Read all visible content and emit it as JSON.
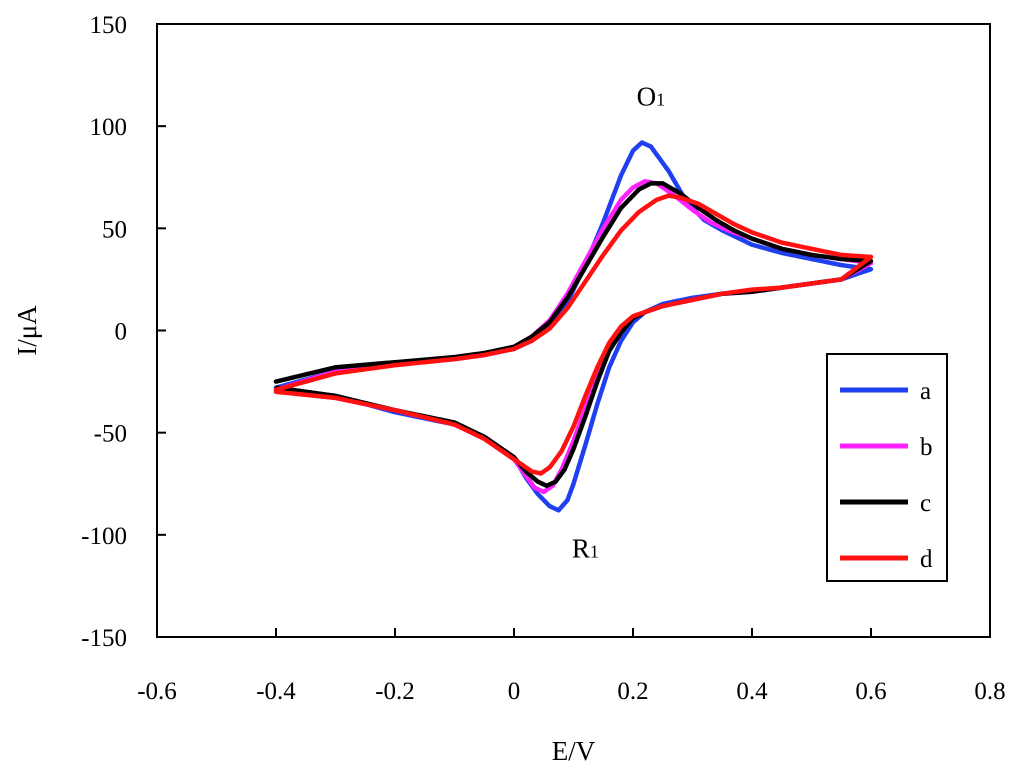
{
  "chart_data": {
    "type": "line",
    "xlabel": "E/V",
    "ylabel": "I/μA",
    "xlim": [
      -0.6,
      0.8
    ],
    "ylim": [
      -150,
      150
    ],
    "x_ticks": [
      -0.6,
      -0.4,
      -0.2,
      0,
      0.2,
      0.4,
      0.6,
      0.8
    ],
    "y_ticks": [
      -150,
      -100,
      -50,
      0,
      50,
      100,
      150
    ],
    "x_tick_labels": [
      "-0.6",
      "-0.4",
      "-0.2",
      "0",
      "0.2",
      "0.4",
      "0.6",
      "0.8"
    ],
    "y_tick_labels": [
      "-150",
      "-100",
      "-50",
      "0",
      "50",
      "100",
      "150"
    ],
    "grid": false,
    "legend_position": "right",
    "annotations": [
      {
        "main": "O",
        "sub": "1",
        "x": 0.23,
        "y": 110
      },
      {
        "main": "R",
        "sub": "1",
        "x": 0.12,
        "y": -111
      }
    ],
    "series": [
      {
        "name": "a",
        "color": "#1f3ff0",
        "points": [
          [
            -0.4,
            -28
          ],
          [
            -0.3,
            -20
          ],
          [
            -0.2,
            -16.5
          ],
          [
            -0.1,
            -14
          ],
          [
            -0.05,
            -12
          ],
          [
            0,
            -9
          ],
          [
            0.03,
            -5
          ],
          [
            0.06,
            2
          ],
          [
            0.09,
            14
          ],
          [
            0.12,
            32
          ],
          [
            0.15,
            53
          ],
          [
            0.18,
            76
          ],
          [
            0.2,
            88
          ],
          [
            0.215,
            92
          ],
          [
            0.23,
            90
          ],
          [
            0.26,
            78
          ],
          [
            0.29,
            63
          ],
          [
            0.32,
            54
          ],
          [
            0.35,
            49
          ],
          [
            0.4,
            42
          ],
          [
            0.45,
            38
          ],
          [
            0.5,
            35
          ],
          [
            0.55,
            32
          ],
          [
            0.6,
            30
          ],
          [
            0.6,
            30
          ],
          [
            0.55,
            25
          ],
          [
            0.5,
            23
          ],
          [
            0.45,
            21
          ],
          [
            0.4,
            19
          ],
          [
            0.35,
            18
          ],
          [
            0.3,
            16
          ],
          [
            0.25,
            13
          ],
          [
            0.22,
            9
          ],
          [
            0.2,
            4
          ],
          [
            0.18,
            -5
          ],
          [
            0.16,
            -18
          ],
          [
            0.14,
            -36
          ],
          [
            0.12,
            -56
          ],
          [
            0.1,
            -75
          ],
          [
            0.09,
            -83
          ],
          [
            0.075,
            -88
          ],
          [
            0.06,
            -86
          ],
          [
            0.04,
            -80
          ],
          [
            0.02,
            -72
          ],
          [
            0,
            -62
          ],
          [
            -0.05,
            -52
          ],
          [
            -0.1,
            -46
          ],
          [
            -0.2,
            -40
          ],
          [
            -0.3,
            -32
          ],
          [
            -0.4,
            -28
          ]
        ]
      },
      {
        "name": "b",
        "color": "#ff22ff",
        "points": [
          [
            -0.4,
            -29
          ],
          [
            -0.3,
            -20
          ],
          [
            -0.2,
            -16.5
          ],
          [
            -0.1,
            -14
          ],
          [
            -0.05,
            -12
          ],
          [
            0,
            -8
          ],
          [
            0.03,
            -3
          ],
          [
            0.06,
            5
          ],
          [
            0.09,
            18
          ],
          [
            0.12,
            34
          ],
          [
            0.15,
            50
          ],
          [
            0.18,
            64
          ],
          [
            0.2,
            70
          ],
          [
            0.22,
            73
          ],
          [
            0.24,
            72
          ],
          [
            0.27,
            66
          ],
          [
            0.3,
            59
          ],
          [
            0.33,
            53
          ],
          [
            0.36,
            49
          ],
          [
            0.4,
            45
          ],
          [
            0.45,
            40
          ],
          [
            0.5,
            37
          ],
          [
            0.55,
            35
          ],
          [
            0.6,
            33
          ],
          [
            0.6,
            33
          ],
          [
            0.55,
            25
          ],
          [
            0.5,
            23
          ],
          [
            0.45,
            21
          ],
          [
            0.4,
            19
          ],
          [
            0.35,
            18
          ],
          [
            0.3,
            15
          ],
          [
            0.25,
            12
          ],
          [
            0.22,
            9
          ],
          [
            0.2,
            6
          ],
          [
            0.18,
            0
          ],
          [
            0.16,
            -8
          ],
          [
            0.14,
            -22
          ],
          [
            0.12,
            -38
          ],
          [
            0.1,
            -54
          ],
          [
            0.08,
            -68
          ],
          [
            0.065,
            -76
          ],
          [
            0.05,
            -79
          ],
          [
            0.035,
            -77
          ],
          [
            0.02,
            -71
          ],
          [
            0,
            -63
          ],
          [
            -0.05,
            -53
          ],
          [
            -0.1,
            -46
          ],
          [
            -0.2,
            -39
          ],
          [
            -0.3,
            -33
          ],
          [
            -0.4,
            -29
          ]
        ]
      },
      {
        "name": "c",
        "color": "#000000",
        "points": [
          [
            -0.4,
            -25
          ],
          [
            -0.3,
            -18
          ],
          [
            -0.2,
            -15.5
          ],
          [
            -0.1,
            -13
          ],
          [
            -0.05,
            -11
          ],
          [
            0,
            -8
          ],
          [
            0.03,
            -3
          ],
          [
            0.06,
            4
          ],
          [
            0.09,
            16
          ],
          [
            0.12,
            31
          ],
          [
            0.15,
            46
          ],
          [
            0.18,
            60
          ],
          [
            0.21,
            69
          ],
          [
            0.23,
            72
          ],
          [
            0.25,
            72
          ],
          [
            0.28,
            67
          ],
          [
            0.31,
            60
          ],
          [
            0.34,
            54
          ],
          [
            0.37,
            49
          ],
          [
            0.4,
            45
          ],
          [
            0.45,
            40
          ],
          [
            0.5,
            37
          ],
          [
            0.55,
            35
          ],
          [
            0.6,
            34
          ],
          [
            0.6,
            34
          ],
          [
            0.55,
            25
          ],
          [
            0.5,
            23
          ],
          [
            0.45,
            21
          ],
          [
            0.4,
            19
          ],
          [
            0.35,
            18
          ],
          [
            0.3,
            15
          ],
          [
            0.25,
            12
          ],
          [
            0.22,
            9
          ],
          [
            0.2,
            6
          ],
          [
            0.18,
            -1
          ],
          [
            0.16,
            -10
          ],
          [
            0.14,
            -25
          ],
          [
            0.12,
            -42
          ],
          [
            0.1,
            -58
          ],
          [
            0.085,
            -68
          ],
          [
            0.07,
            -74
          ],
          [
            0.055,
            -76
          ],
          [
            0.04,
            -74
          ],
          [
            0.02,
            -69
          ],
          [
            0,
            -62
          ],
          [
            -0.05,
            -52
          ],
          [
            -0.1,
            -45
          ],
          [
            -0.2,
            -39
          ],
          [
            -0.3,
            -32
          ],
          [
            -0.4,
            -28
          ]
        ]
      },
      {
        "name": "d",
        "color": "#ff1111",
        "points": [
          [
            -0.4,
            -29
          ],
          [
            -0.3,
            -21
          ],
          [
            -0.2,
            -17
          ],
          [
            -0.1,
            -14
          ],
          [
            -0.05,
            -12
          ],
          [
            0,
            -9
          ],
          [
            0.03,
            -5
          ],
          [
            0.06,
            1
          ],
          [
            0.09,
            11
          ],
          [
            0.12,
            24
          ],
          [
            0.15,
            37
          ],
          [
            0.18,
            49
          ],
          [
            0.21,
            58
          ],
          [
            0.24,
            64
          ],
          [
            0.26,
            66
          ],
          [
            0.28,
            65
          ],
          [
            0.31,
            62
          ],
          [
            0.34,
            57
          ],
          [
            0.37,
            52
          ],
          [
            0.4,
            48
          ],
          [
            0.45,
            43
          ],
          [
            0.5,
            40
          ],
          [
            0.55,
            37
          ],
          [
            0.6,
            36
          ],
          [
            0.6,
            36
          ],
          [
            0.55,
            25
          ],
          [
            0.5,
            23
          ],
          [
            0.45,
            21
          ],
          [
            0.4,
            20
          ],
          [
            0.35,
            18
          ],
          [
            0.3,
            15
          ],
          [
            0.25,
            12
          ],
          [
            0.22,
            9
          ],
          [
            0.2,
            7
          ],
          [
            0.18,
            2
          ],
          [
            0.16,
            -6
          ],
          [
            0.14,
            -18
          ],
          [
            0.12,
            -32
          ],
          [
            0.1,
            -47
          ],
          [
            0.08,
            -59
          ],
          [
            0.06,
            -67
          ],
          [
            0.045,
            -70
          ],
          [
            0.03,
            -69
          ],
          [
            0.01,
            -65
          ],
          [
            -0.02,
            -59
          ],
          [
            -0.05,
            -53
          ],
          [
            -0.1,
            -46
          ],
          [
            -0.2,
            -39
          ],
          [
            -0.3,
            -33
          ],
          [
            -0.4,
            -30
          ]
        ]
      }
    ]
  }
}
